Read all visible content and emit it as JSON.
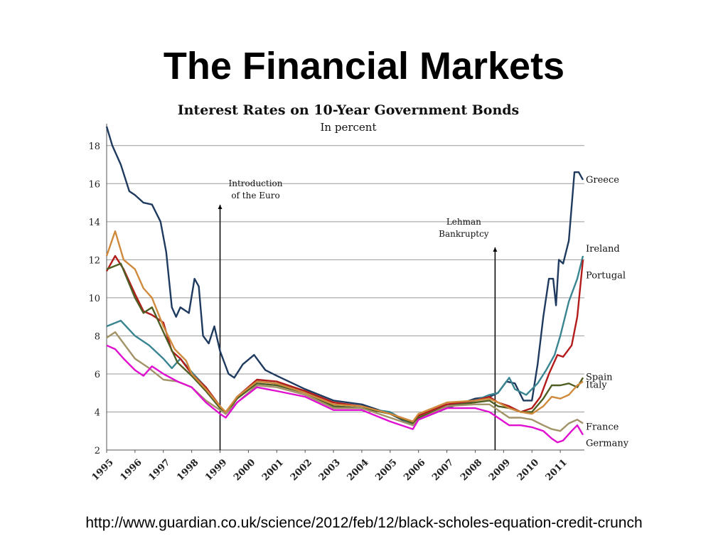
{
  "slide": {
    "title": "The Financial Markets",
    "source_url": "http://www.guardian.co.uk/science/2012/feb/12/black-scholes-equation-credit-crunch"
  },
  "chart_data": {
    "type": "line",
    "title": "Interest Rates on 10-Year Government Bonds",
    "subtitle": "In percent",
    "xlabel": "",
    "ylabel": "",
    "xlim": [
      1995,
      2011.85
    ],
    "ylim": [
      2,
      19
    ],
    "grid": true,
    "legend": "right-end labels",
    "x_ticks": [
      1995,
      1996,
      1997,
      1998,
      1999,
      2000,
      2001,
      2002,
      2003,
      2004,
      2005,
      2006,
      2007,
      2008,
      2009,
      2010,
      2011
    ],
    "y_ticks": [
      2,
      4,
      6,
      8,
      10,
      12,
      14,
      16,
      18
    ],
    "annotations": [
      {
        "label_lines": [
          "Introduction",
          "of the Euro"
        ],
        "x": 1999.0
      },
      {
        "label_lines": [
          "Lehman",
          "Bankruptcy"
        ],
        "x": 2008.7
      }
    ],
    "series": [
      {
        "name": "Greece",
        "color": "#1f3a5f",
        "x": [
          1995,
          1995.2,
          1995.5,
          1995.8,
          1996,
          1996.3,
          1996.6,
          1996.9,
          1997.1,
          1997.3,
          1997.45,
          1997.6,
          1997.9,
          1998.1,
          1998.25,
          1998.4,
          1998.6,
          1998.8,
          1999.0,
          1999.3,
          1999.5,
          1999.8,
          2000.2,
          2000.6,
          2001,
          2002,
          2003,
          2004,
          2005,
          2005.8,
          2006,
          2007,
          2008,
          2008.5,
          2008.8,
          2009.1,
          2009.4,
          2009.7,
          2010.0,
          2010.2,
          2010.4,
          2010.6,
          2010.75,
          2010.85,
          2010.95,
          2011.1,
          2011.3,
          2011.5,
          2011.65,
          2011.8
        ],
        "y": [
          19,
          18,
          17,
          15.6,
          15.4,
          15,
          14.9,
          14,
          12.4,
          9.5,
          9,
          9.5,
          9.2,
          11,
          10.6,
          8,
          7.6,
          8.5,
          7.2,
          6,
          5.8,
          6.5,
          7,
          6.2,
          5.9,
          5.2,
          4.6,
          4.4,
          3.9,
          3.3,
          3.6,
          4.2,
          4.7,
          4.8,
          5,
          5.6,
          5.5,
          4.6,
          4.6,
          6.5,
          9,
          11,
          11,
          9.6,
          12,
          11.8,
          13,
          16.6,
          16.6,
          16.2
        ]
      },
      {
        "name": "Ireland",
        "color": "#3a8591",
        "x": [
          1995,
          1995.5,
          1996,
          1996.5,
          1997,
          1997.3,
          1997.6,
          1998,
          1998.5,
          1999,
          1999.2,
          1999.6,
          2000.3,
          2001,
          2002,
          2003,
          2004,
          2005,
          2005.8,
          2006,
          2007,
          2008,
          2008.5,
          2008.8,
          2009.2,
          2009.4,
          2009.8,
          2010.2,
          2010.5,
          2010.8,
          2011.0,
          2011.3,
          2011.6,
          2011.8
        ],
        "y": [
          8.5,
          8.8,
          8,
          7.5,
          6.8,
          6.3,
          6.8,
          6.1,
          5.3,
          4.3,
          3.9,
          4.8,
          5.6,
          5.5,
          5.1,
          4.3,
          4.2,
          4,
          3.3,
          3.7,
          4.3,
          4.6,
          4.9,
          5,
          5.8,
          5.2,
          4.9,
          5.5,
          6.2,
          7,
          8,
          9.8,
          11,
          12.2
        ]
      },
      {
        "name": "Portugal",
        "color": "#b31b1b",
        "x": [
          1995,
          1995.3,
          1995.6,
          1996,
          1996.3,
          1996.6,
          1997,
          1997.3,
          1997.6,
          1998,
          1998.5,
          1999,
          1999.2,
          1999.6,
          2000.3,
          2001,
          2002,
          2003,
          2004,
          2005,
          2005.8,
          2006,
          2007,
          2008,
          2008.5,
          2008.8,
          2009.2,
          2009.6,
          2010,
          2010.3,
          2010.6,
          2010.9,
          2011.1,
          2011.4,
          2011.6,
          2011.8
        ],
        "y": [
          11.4,
          12.2,
          11.5,
          10.2,
          9.3,
          9.1,
          8.7,
          7.2,
          6.8,
          6,
          5.3,
          4.3,
          3.9,
          4.8,
          5.7,
          5.6,
          5.1,
          4.5,
          4.3,
          3.9,
          3.5,
          3.8,
          4.4,
          4.6,
          4.8,
          4.5,
          4.3,
          4,
          4.2,
          4.8,
          6,
          7,
          6.9,
          7.5,
          9,
          12
        ]
      },
      {
        "name": "Spain",
        "color": "#4f5e23",
        "x": [
          1995,
          1995.5,
          1996,
          1996.3,
          1996.6,
          1997,
          1997.5,
          1998,
          1998.5,
          1999,
          1999.2,
          1999.6,
          2000.3,
          2001,
          2002,
          2003,
          2004,
          2005,
          2005.8,
          2006,
          2007,
          2008,
          2008.5,
          2008.8,
          2009.2,
          2009.6,
          2010,
          2010.4,
          2010.7,
          2011.0,
          2011.3,
          2011.6,
          2011.8
        ],
        "y": [
          11.5,
          11.8,
          10,
          9.2,
          9.5,
          8.2,
          6.6,
          5.9,
          5.1,
          4.2,
          3.9,
          4.7,
          5.5,
          5.4,
          5,
          4.3,
          4.2,
          3.9,
          3.4,
          3.7,
          4.3,
          4.5,
          4.6,
          4.3,
          4.2,
          4,
          4,
          4.7,
          5.4,
          5.4,
          5.5,
          5.3,
          5.8
        ]
      },
      {
        "name": "Italy",
        "color": "#d08a3c",
        "x": [
          1995,
          1995.3,
          1995.6,
          1996,
          1996.3,
          1996.6,
          1997,
          1997.4,
          1997.8,
          1998,
          1998.5,
          1999,
          1999.2,
          1999.6,
          2000.3,
          2001,
          2002,
          2003,
          2004,
          2005,
          2005.8,
          2006,
          2007,
          2008,
          2008.5,
          2008.8,
          2009.2,
          2009.6,
          2010,
          2010.4,
          2010.7,
          2011.0,
          2011.3,
          2011.6,
          2011.8
        ],
        "y": [
          12.2,
          13.5,
          12,
          11.5,
          10.5,
          10,
          8.5,
          7.3,
          6.7,
          6,
          5.2,
          4.3,
          4,
          4.8,
          5.6,
          5.5,
          5,
          4.4,
          4.3,
          3.9,
          3.5,
          3.9,
          4.5,
          4.6,
          4.7,
          4.5,
          4.2,
          4,
          3.9,
          4.3,
          4.8,
          4.7,
          4.9,
          5.4,
          5.6
        ]
      },
      {
        "name": "France",
        "color": "#a39368",
        "x": [
          1995,
          1995.3,
          1995.6,
          1996,
          1996.5,
          1997,
          1997.5,
          1998,
          1998.5,
          1999,
          1999.2,
          1999.6,
          2000.3,
          2001,
          2002,
          2003,
          2004,
          2005,
          2005.8,
          2006,
          2007,
          2008,
          2008.5,
          2008.8,
          2009.2,
          2009.6,
          2010,
          2010.4,
          2010.7,
          2011.0,
          2011.3,
          2011.6,
          2011.8
        ],
        "y": [
          7.9,
          8.2,
          7.6,
          6.8,
          6.3,
          5.7,
          5.6,
          5.3,
          4.6,
          4.1,
          3.9,
          4.5,
          5.4,
          5.3,
          4.9,
          4.2,
          4.2,
          3.7,
          3.3,
          3.6,
          4.3,
          4.4,
          4.4,
          4.1,
          3.7,
          3.7,
          3.6,
          3.3,
          3.1,
          3,
          3.4,
          3.6,
          3.4
        ]
      },
      {
        "name": "Germany",
        "color": "#e010d0",
        "x": [
          1995,
          1995.3,
          1995.6,
          1996,
          1996.3,
          1996.6,
          1997,
          1997.5,
          1998,
          1998.5,
          1999,
          1999.2,
          1999.6,
          2000.3,
          2001,
          2002,
          2003,
          2004,
          2005,
          2005.8,
          2006,
          2007,
          2008,
          2008.5,
          2008.8,
          2009.2,
          2009.6,
          2010,
          2010.4,
          2010.7,
          2010.9,
          2011.1,
          2011.4,
          2011.6,
          2011.8
        ],
        "y": [
          7.5,
          7.3,
          6.8,
          6.2,
          5.9,
          6.4,
          6,
          5.6,
          5.3,
          4.5,
          3.9,
          3.7,
          4.5,
          5.3,
          5.1,
          4.8,
          4.1,
          4.1,
          3.5,
          3.1,
          3.6,
          4.2,
          4.2,
          4,
          3.7,
          3.3,
          3.3,
          3.2,
          3,
          2.6,
          2.4,
          2.5,
          3,
          3.3,
          2.8
        ]
      }
    ]
  }
}
